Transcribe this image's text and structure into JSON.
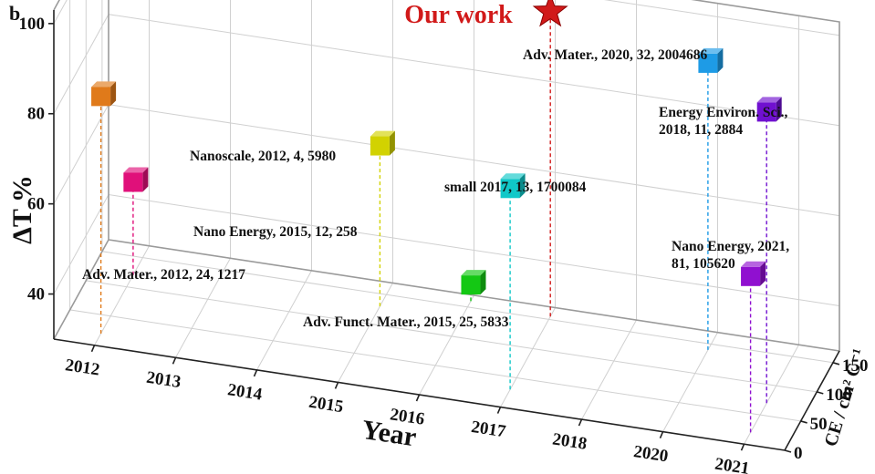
{
  "panel_label": "b",
  "chart_data": {
    "type": "scatter",
    "projection": "3d",
    "title": "",
    "xlabel": "Year",
    "ylabel": "ΔT %",
    "zlabel": "CE / cm² C⁻¹",
    "x_categories": [
      "2012",
      "2013",
      "2014",
      "2015",
      "2016",
      "2017",
      "2018",
      "2020",
      "2021"
    ],
    "y_ticks": [
      40,
      60,
      80,
      100
    ],
    "z_ticks": [
      0,
      50,
      100,
      150
    ],
    "ylim": [
      30,
      103
    ],
    "zlim": [
      0,
      170
    ],
    "grid": true,
    "points": [
      {
        "label": "Adv. Mater., 2012, 24, 1217",
        "year": "2012",
        "dT": 51,
        "CE": 120,
        "color": "#e0107a",
        "marker": "cube"
      },
      {
        "label": "Nanoscale, 2012, 4, 5980",
        "year": "2012",
        "dT": 83,
        "CE": 20,
        "color": "#e07a1a",
        "marker": "cube"
      },
      {
        "label": "Nano Energy, 2015, 12, 258",
        "year": "2015",
        "dT": 66,
        "CE": 130,
        "color": "#d2d200",
        "marker": "cube"
      },
      {
        "label": "Adv. Funct. Mater., 2015, 25, 5833",
        "year": "2016",
        "dT": 34,
        "CE": 160,
        "color": "#14c814",
        "marker": "cube"
      },
      {
        "label": "Our work",
        "year": "2017",
        "dT": 97,
        "CE": 155,
        "color": "#d11a1a",
        "marker": "star"
      },
      {
        "label": "small 2017, 13, 1700084",
        "year": "2017",
        "dT": 75,
        "CE": 30,
        "color": "#10c8c8",
        "marker": "cube"
      },
      {
        "label": "Adv. Mater., 2020, 32, 2004686",
        "year": "2020",
        "dT": 94,
        "CE": 140,
        "color": "#1e9be6",
        "marker": "cube"
      },
      {
        "label": "Energy Environ. Sci., 2018, 11, 2884",
        "year": "2021",
        "dT": 95,
        "CE": 70,
        "color": "#7010d0",
        "marker": "cube"
      },
      {
        "label": "Nano Energy, 2021, 81, 105620",
        "year": "2021",
        "dT": 65,
        "CE": 20,
        "color": "#9010d0",
        "marker": "cube"
      }
    ]
  }
}
